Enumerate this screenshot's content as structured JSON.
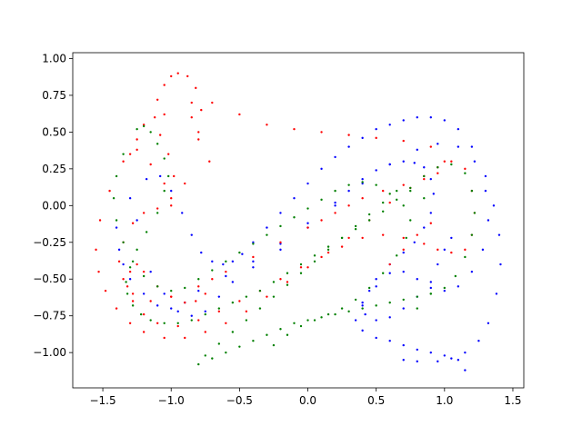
{
  "chart_data": {
    "type": "scatter",
    "title": "",
    "xlabel": "",
    "ylabel": "",
    "xlim": [
      -1.72,
      1.58
    ],
    "ylim": [
      -1.24,
      1.04
    ],
    "grid": false,
    "legend": "none",
    "x_ticks": [
      -1.5,
      -1.0,
      -0.5,
      0.0,
      0.5,
      1.0,
      1.5
    ],
    "x_tick_labels": [
      "−1.5",
      "−1.0",
      "−0.5",
      "0.0",
      "0.5",
      "1.0",
      "1.5"
    ],
    "y_ticks": [
      -1.0,
      -0.75,
      -0.5,
      -0.25,
      0.0,
      0.25,
      0.5,
      0.75,
      1.0
    ],
    "y_tick_labels": [
      "−1.00",
      "−0.75",
      "−0.50",
      "−0.25",
      "0.00",
      "0.25",
      "0.50",
      "0.75",
      "1.00"
    ],
    "series": [
      {
        "color": "#0000ff",
        "x": [
          -1.3,
          -1.18,
          -1.08,
          -1.0,
          -0.92,
          -0.85,
          -0.78,
          -0.7,
          -0.62,
          -0.55,
          -0.48,
          -0.4,
          -0.3,
          -0.2,
          -0.1,
          0.0,
          0.1,
          0.2,
          0.3,
          0.4,
          0.5,
          0.6,
          0.7,
          0.8,
          0.9,
          1.0,
          1.1,
          1.2,
          1.3,
          1.36,
          1.4,
          1.41,
          1.38,
          1.32,
          1.25,
          1.15,
          1.05,
          0.95,
          0.8,
          0.7,
          -1.25,
          -1.15,
          -1.05,
          -0.95,
          -0.85,
          -0.75,
          -0.65,
          -0.55,
          -0.4,
          -0.2,
          0.0,
          0.2,
          0.4,
          0.6,
          0.8,
          0.95,
          1.1,
          1.22,
          1.3,
          1.32,
          1.28,
          1.2,
          1.1,
          1.0,
          0.9,
          0.8,
          0.7,
          0.6,
          0.5,
          0.4,
          0.35,
          0.4,
          0.5,
          0.6,
          0.7,
          0.8,
          0.9,
          1.0,
          1.1,
          1.15,
          -1.4,
          -1.38,
          -1.35,
          -1.3,
          -1.2,
          -1.1,
          -1.0,
          -0.9,
          -0.8,
          -0.6,
          -0.4,
          -0.2,
          0.0,
          0.2,
          0.3,
          0.4,
          0.5,
          0.6,
          0.7,
          0.78,
          0.85,
          0.9,
          0.92,
          0.9,
          0.85,
          0.78,
          0.7,
          0.6,
          0.5,
          0.45,
          0.4,
          0.42,
          0.5,
          0.6,
          0.7,
          0.8,
          0.9,
          0.95,
          1.0,
          1.05
        ],
        "y": [
          0.05,
          0.18,
          0.2,
          0.1,
          -0.05,
          -0.2,
          -0.32,
          -0.38,
          -0.4,
          -0.38,
          -0.33,
          -0.25,
          -0.15,
          -0.05,
          0.05,
          0.15,
          0.25,
          0.33,
          0.4,
          0.46,
          0.52,
          0.55,
          0.58,
          0.6,
          0.6,
          0.58,
          0.52,
          0.4,
          0.2,
          0.0,
          -0.2,
          -0.4,
          -0.6,
          -0.8,
          -0.92,
          -1.0,
          -1.04,
          -1.06,
          -1.06,
          -1.05,
          -0.1,
          -0.45,
          -0.6,
          -0.72,
          -0.75,
          -0.72,
          -0.62,
          -0.52,
          -0.42,
          -0.3,
          -0.15,
          0.0,
          0.15,
          0.28,
          0.38,
          0.42,
          0.4,
          0.3,
          0.1,
          -0.1,
          -0.3,
          -0.45,
          -0.55,
          -0.58,
          -0.56,
          -0.5,
          -0.45,
          -0.46,
          -0.55,
          -0.68,
          -0.78,
          -0.85,
          -0.9,
          -0.92,
          -0.95,
          -0.98,
          -1.0,
          -1.02,
          -1.05,
          -1.12,
          -0.15,
          -0.3,
          -0.4,
          -0.5,
          -0.6,
          -0.68,
          -0.7,
          -0.66,
          -0.58,
          -0.48,
          -0.38,
          -0.26,
          -0.12,
          0.02,
          0.1,
          0.18,
          0.24,
          0.28,
          0.3,
          0.29,
          0.26,
          0.18,
          0.08,
          -0.05,
          -0.15,
          -0.25,
          -0.32,
          -0.4,
          -0.5,
          -0.58,
          -0.66,
          -0.74,
          -0.78,
          -0.76,
          -0.7,
          -0.62,
          -0.52,
          -0.4,
          -0.3,
          -0.22
        ]
      },
      {
        "color": "#ff0000",
        "x": [
          -0.8,
          -0.78,
          -0.82,
          -0.88,
          -0.95,
          -1.0,
          -1.05,
          -1.1,
          -1.12,
          -1.08,
          -1.02,
          -0.98,
          -1.0,
          -1.05,
          -1.15,
          -1.25,
          -1.35,
          -1.45,
          -1.52,
          -1.55,
          -1.53,
          -1.48,
          -1.4,
          -1.3,
          -1.2,
          -1.05,
          -0.9,
          -0.75,
          -0.6,
          -0.45,
          -0.3,
          -0.15,
          0.0,
          0.15,
          0.3,
          0.45,
          0.6,
          0.75,
          0.85,
          0.95,
          1.05,
          1.15,
          1.2,
          1.22,
          1.2,
          1.15,
          1.05,
          0.95,
          0.85,
          0.7,
          0.55,
          0.4,
          0.25,
          0.1,
          -0.05,
          -0.2,
          -0.35,
          -0.5,
          -0.65,
          -0.8,
          -0.95,
          -1.1,
          -1.2,
          -1.28,
          -1.32,
          -1.3,
          -1.25,
          -1.2,
          -1.1,
          -1.0,
          -0.9,
          -0.82,
          -0.75,
          -0.7,
          -0.72,
          -0.8,
          -0.85,
          -0.7,
          -0.5,
          -0.3,
          -0.1,
          0.1,
          0.3,
          0.5,
          0.7,
          0.9,
          1.0,
          0.95,
          0.85,
          0.7,
          0.55,
          0.4,
          0.3,
          0.2,
          0.1,
          0.0,
          -0.2,
          -0.4,
          -0.6,
          -0.8,
          -1.0,
          -1.15,
          -1.28,
          -1.35,
          -1.38,
          -1.35,
          -1.28,
          -1.2,
          -1.1,
          -1.0,
          -0.9,
          -0.85,
          -1.05,
          -1.2,
          -1.25,
          -1.3,
          0.6,
          0.7,
          0.8,
          0.9
        ],
        "y": [
          0.5,
          0.65,
          0.8,
          0.88,
          0.9,
          0.88,
          0.82,
          0.72,
          0.6,
          0.48,
          0.35,
          0.2,
          0.05,
          0.15,
          0.28,
          0.38,
          0.3,
          0.1,
          -0.1,
          -0.3,
          -0.45,
          -0.58,
          -0.7,
          -0.8,
          -0.86,
          -0.9,
          -0.9,
          -0.86,
          -0.8,
          -0.72,
          -0.62,
          -0.52,
          -0.42,
          -0.32,
          -0.22,
          -0.1,
          0.02,
          0.12,
          0.2,
          0.26,
          0.3,
          0.25,
          0.1,
          -0.05,
          -0.2,
          -0.3,
          -0.32,
          -0.3,
          -0.26,
          -0.22,
          -0.2,
          -0.22,
          -0.28,
          -0.35,
          -0.42,
          -0.5,
          -0.58,
          -0.65,
          -0.72,
          -0.78,
          -0.82,
          -0.8,
          -0.74,
          -0.65,
          -0.55,
          -0.45,
          -0.4,
          -0.45,
          -0.55,
          -0.62,
          -0.66,
          -0.65,
          -0.6,
          -0.5,
          0.3,
          0.45,
          0.6,
          0.7,
          0.62,
          0.55,
          0.52,
          0.5,
          0.48,
          0.46,
          0.44,
          0.4,
          0.3,
          0.22,
          0.18,
          0.14,
          0.1,
          0.05,
          0.0,
          -0.05,
          -0.1,
          -0.15,
          -0.25,
          -0.35,
          -0.45,
          -0.55,
          -0.62,
          -0.65,
          -0.6,
          -0.5,
          -0.38,
          -0.25,
          -0.12,
          -0.05,
          -0.02,
          0.0,
          0.15,
          0.7,
          0.62,
          0.55,
          0.45,
          0.35,
          -0.4,
          -0.3,
          -0.2,
          -0.12
        ]
      },
      {
        "color": "#008000",
        "x": [
          -1.25,
          -1.2,
          -1.15,
          -1.1,
          -1.05,
          -1.02,
          -1.05,
          -1.1,
          -1.18,
          -1.25,
          -1.3,
          -1.33,
          -1.32,
          -1.28,
          -1.22,
          -1.15,
          -1.05,
          -0.95,
          -0.85,
          -0.75,
          -0.65,
          -0.55,
          -0.45,
          -0.35,
          -0.25,
          -0.15,
          -0.05,
          0.05,
          0.15,
          0.25,
          0.35,
          0.45,
          0.55,
          0.65,
          0.75,
          0.85,
          0.95,
          1.05,
          1.15,
          1.2,
          1.22,
          1.2,
          1.15,
          1.08,
          1.0,
          0.9,
          0.8,
          0.7,
          0.6,
          0.5,
          0.4,
          0.3,
          0.2,
          0.1,
          0.0,
          -0.1,
          -0.2,
          -0.3,
          -0.4,
          -0.5,
          -0.6,
          -0.7,
          -0.8,
          -0.75,
          -0.65,
          -0.55,
          -0.45,
          -0.35,
          -0.25,
          -0.15,
          -0.05,
          0.05,
          0.15,
          0.25,
          0.35,
          0.45,
          0.55,
          0.65,
          0.75,
          0.85,
          -1.35,
          -1.4,
          -1.42,
          -1.4,
          -1.35,
          -1.28,
          -1.2,
          -1.1,
          -1.0,
          -0.9,
          -0.8,
          -0.7,
          -0.6,
          -0.5,
          -0.4,
          -0.3,
          -0.2,
          -0.1,
          0.0,
          0.1,
          0.2,
          0.3,
          0.4,
          0.5,
          0.6,
          0.7,
          0.75,
          0.72,
          0.65,
          0.55,
          0.45,
          0.35,
          0.25,
          0.15,
          0.05,
          -0.05,
          -0.15,
          -0.25,
          0.8,
          0.9
        ],
        "y": [
          0.52,
          0.54,
          0.5,
          0.42,
          0.32,
          0.2,
          0.1,
          -0.05,
          -0.18,
          -0.3,
          -0.42,
          -0.52,
          -0.6,
          -0.68,
          -0.74,
          -0.78,
          -0.8,
          -0.8,
          -0.78,
          -0.74,
          -0.7,
          -0.66,
          -0.62,
          -0.58,
          -0.52,
          -0.46,
          -0.4,
          -0.34,
          -0.28,
          -0.22,
          -0.16,
          -0.1,
          -0.04,
          0.04,
          0.12,
          0.2,
          0.26,
          0.28,
          0.22,
          0.1,
          -0.05,
          -0.2,
          -0.35,
          -0.48,
          -0.56,
          -0.6,
          -0.62,
          -0.64,
          -0.66,
          -0.68,
          -0.7,
          -0.72,
          -0.74,
          -0.76,
          -0.78,
          -0.8,
          -0.84,
          -0.88,
          -0.92,
          -0.96,
          -1.0,
          -1.04,
          -1.08,
          -1.02,
          -0.94,
          -0.86,
          -0.78,
          -0.7,
          -0.62,
          -0.54,
          -0.46,
          -0.38,
          -0.3,
          -0.22,
          -0.14,
          -0.06,
          0.02,
          0.1,
          0.1,
          0.05,
          0.35,
          0.2,
          0.05,
          -0.1,
          -0.25,
          -0.38,
          -0.48,
          -0.55,
          -0.58,
          -0.56,
          -0.5,
          -0.44,
          -0.38,
          -0.32,
          -0.26,
          -0.2,
          -0.14,
          -0.08,
          -0.02,
          0.04,
          0.1,
          0.14,
          0.16,
          0.14,
          0.08,
          0.0,
          -0.1,
          -0.22,
          -0.34,
          -0.46,
          -0.56,
          -0.64,
          -0.7,
          -0.74,
          -0.78,
          -0.82,
          -0.88,
          -0.95,
          -0.7,
          -0.6
        ]
      }
    ]
  }
}
